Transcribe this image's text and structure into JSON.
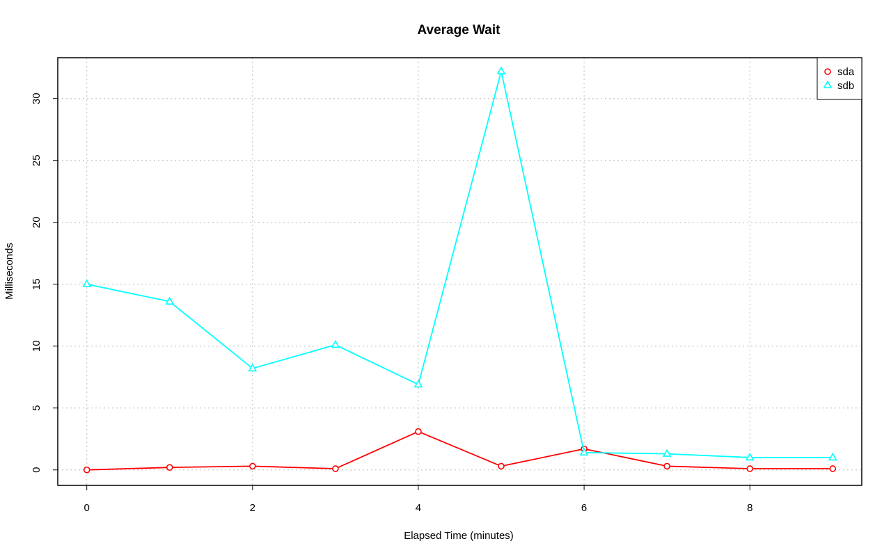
{
  "chart_data": {
    "type": "line",
    "title": "Average Wait",
    "xlabel": "Elapsed Time (minutes)",
    "ylabel": "Milliseconds",
    "xlim": [
      -0.35,
      9.35
    ],
    "ylim": [
      -1.25,
      33.3
    ],
    "x_ticks": [
      0,
      2,
      4,
      6,
      8
    ],
    "y_ticks": [
      0,
      5,
      10,
      15,
      20,
      25,
      30
    ],
    "x_tick_labels": [
      "0",
      "2",
      "4",
      "6",
      "8"
    ],
    "y_tick_labels": [
      "0",
      "5",
      "10",
      "15",
      "20",
      "25",
      "30"
    ],
    "grid": true,
    "legend_position": "top-right",
    "x": [
      0,
      1,
      2,
      3,
      4,
      5,
      6,
      7,
      8,
      9
    ],
    "series": [
      {
        "name": "sda",
        "color": "#ff0000",
        "marker": "circle",
        "values": [
          0.0,
          0.2,
          0.3,
          0.1,
          3.1,
          0.3,
          1.7,
          0.3,
          0.1,
          0.1
        ]
      },
      {
        "name": "sdb",
        "color": "#00ffff",
        "marker": "triangle",
        "values": [
          15.0,
          13.6,
          8.2,
          10.1,
          6.9,
          32.2,
          1.4,
          1.3,
          1.0,
          1.0
        ]
      }
    ]
  }
}
